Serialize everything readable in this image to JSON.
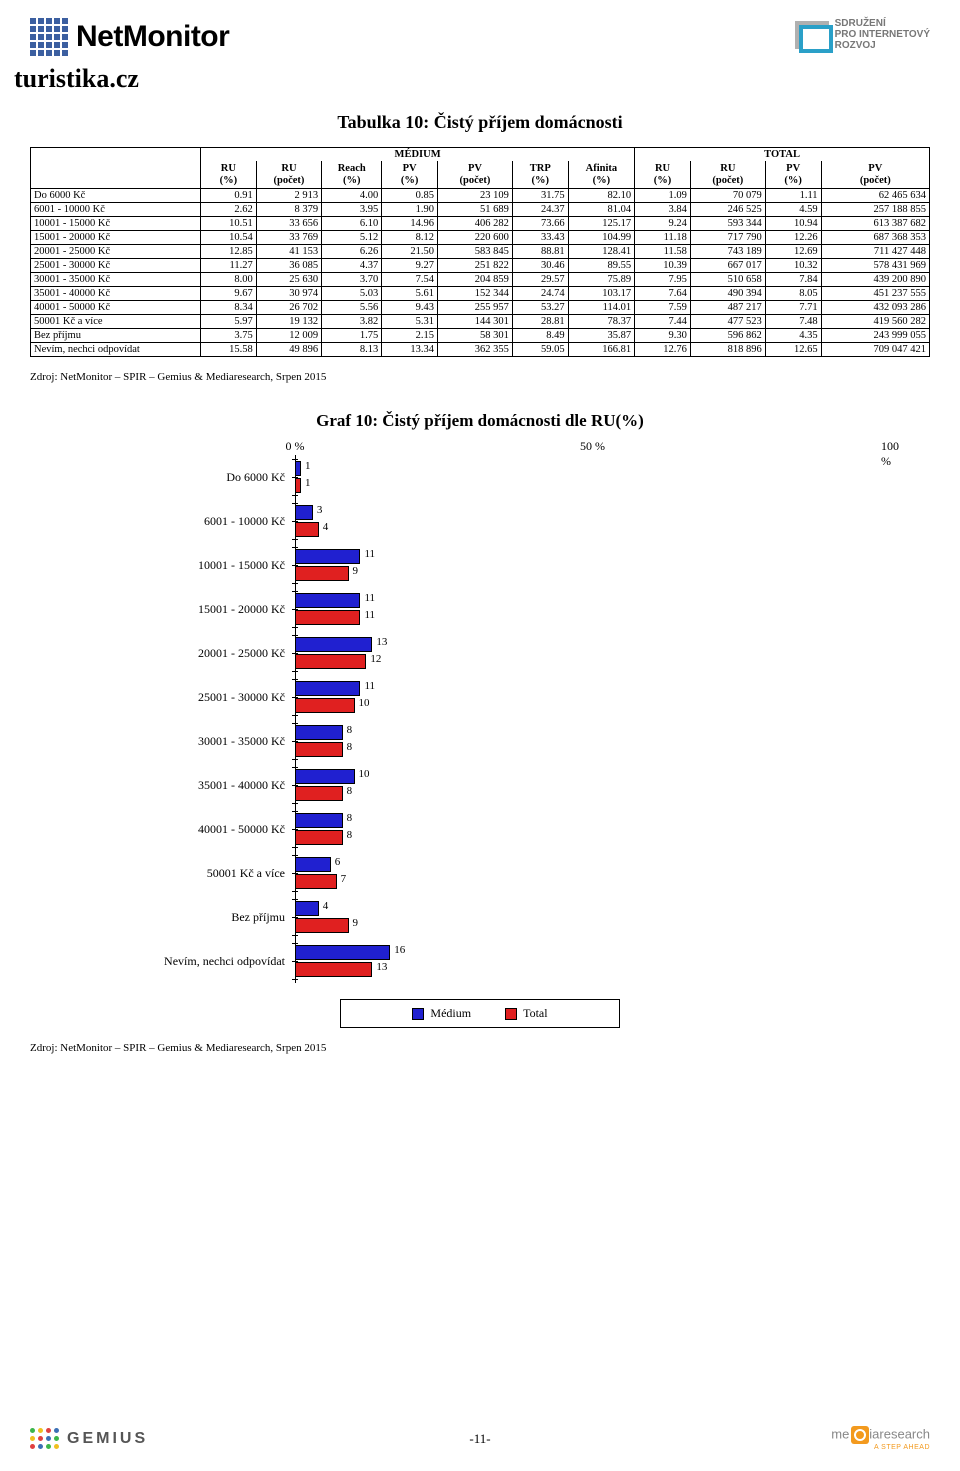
{
  "header": {
    "logo_text": "NetMonitor",
    "spir_line1": "SDRUŽENÍ",
    "spir_line2": "PRO INTERNETOVÝ",
    "spir_line3": "ROZVOJ"
  },
  "site_title": "turistika.cz",
  "table_title": "Tabulka 10: Čistý příjem domácnosti",
  "group_headers": {
    "medium": "MÉDIUM",
    "total": "TOTAL"
  },
  "columns": [
    "RU (%)",
    "RU (počet)",
    "Reach (%)",
    "PV (%)",
    "PV (počet)",
    "TRP (%)",
    "Afinita (%)",
    "RU (%)",
    "RU (počet)",
    "PV (%)",
    "PV (počet)"
  ],
  "rows": [
    {
      "label": "Do 6000 Kč",
      "v": [
        "0.91",
        "2 913",
        "4.00",
        "0.85",
        "23 109",
        "31.75",
        "82.10",
        "1.09",
        "70 079",
        "1.11",
        "62 465 634"
      ]
    },
    {
      "label": "6001 - 10000 Kč",
      "v": [
        "2.62",
        "8 379",
        "3.95",
        "1.90",
        "51 689",
        "24.37",
        "81.04",
        "3.84",
        "246 525",
        "4.59",
        "257 188 855"
      ]
    },
    {
      "label": "10001 - 15000 Kč",
      "v": [
        "10.51",
        "33 656",
        "6.10",
        "14.96",
        "406 282",
        "73.66",
        "125.17",
        "9.24",
        "593 344",
        "10.94",
        "613 387 682"
      ]
    },
    {
      "label": "15001 - 20000 Kč",
      "v": [
        "10.54",
        "33 769",
        "5.12",
        "8.12",
        "220 600",
        "33.43",
        "104.99",
        "11.18",
        "717 790",
        "12.26",
        "687 368 353"
      ]
    },
    {
      "label": "20001 - 25000 Kč",
      "v": [
        "12.85",
        "41 153",
        "6.26",
        "21.50",
        "583 845",
        "88.81",
        "128.41",
        "11.58",
        "743 189",
        "12.69",
        "711 427 448"
      ]
    },
    {
      "label": "25001 - 30000 Kč",
      "v": [
        "11.27",
        "36 085",
        "4.37",
        "9.27",
        "251 822",
        "30.46",
        "89.55",
        "10.39",
        "667 017",
        "10.32",
        "578 431 969"
      ]
    },
    {
      "label": "30001 - 35000 Kč",
      "v": [
        "8.00",
        "25 630",
        "3.70",
        "7.54",
        "204 859",
        "29.57",
        "75.89",
        "7.95",
        "510 658",
        "7.84",
        "439 200 890"
      ]
    },
    {
      "label": "35001 - 40000 Kč",
      "v": [
        "9.67",
        "30 974",
        "5.03",
        "5.61",
        "152 344",
        "24.74",
        "103.17",
        "7.64",
        "490 394",
        "8.05",
        "451 237 555"
      ]
    },
    {
      "label": "40001 - 50000 Kč",
      "v": [
        "8.34",
        "26 702",
        "5.56",
        "9.43",
        "255 957",
        "53.27",
        "114.01",
        "7.59",
        "487 217",
        "7.71",
        "432 093 286"
      ]
    },
    {
      "label": "50001 Kč a více",
      "v": [
        "5.97",
        "19 132",
        "3.82",
        "5.31",
        "144 301",
        "28.81",
        "78.37",
        "7.44",
        "477 523",
        "7.48",
        "419 560 282"
      ]
    },
    {
      "label": "Bez příjmu",
      "v": [
        "3.75",
        "12 009",
        "1.75",
        "2.15",
        "58 301",
        "8.49",
        "35.87",
        "9.30",
        "596 862",
        "4.35",
        "243 999 055"
      ]
    },
    {
      "label": "Nevím, nechci odpovídat",
      "v": [
        "15.58",
        "49 896",
        "8.13",
        "13.34",
        "362 355",
        "59.05",
        "166.81",
        "12.76",
        "818 896",
        "12.65",
        "709 047 421"
      ]
    }
  ],
  "source_text": "Zdroj: NetMonitor – SPIR – Gemius & Mediaresearch, Srpen 2015",
  "chart_title": "Graf 10: Čistý příjem domácnosti dle RU(%)",
  "chart": {
    "axis": {
      "min": 0,
      "max": 100,
      "ticks": [
        0,
        50,
        100
      ],
      "tick_labels": [
        "0 %",
        "50 %",
        "100 %"
      ]
    },
    "bar_colors": {
      "medium": "#2020d0",
      "total": "#e02020",
      "border": "#000000"
    },
    "label_fontsize": 12,
    "value_fontsize": 11,
    "categories": [
      {
        "label": "Do 6000 Kč",
        "medium": 1,
        "total": 1
      },
      {
        "label": "6001 - 10000 Kč",
        "medium": 3,
        "total": 4
      },
      {
        "label": "10001 - 15000 Kč",
        "medium": 11,
        "total": 9
      },
      {
        "label": "15001 - 20000 Kč",
        "medium": 11,
        "total": 11
      },
      {
        "label": "20001 - 25000 Kč",
        "medium": 13,
        "total": 12
      },
      {
        "label": "25001 - 30000 Kč",
        "medium": 11,
        "total": 10
      },
      {
        "label": "30001 - 35000 Kč",
        "medium": 8,
        "total": 8
      },
      {
        "label": "35001 - 40000 Kč",
        "medium": 10,
        "total": 8
      },
      {
        "label": "40001 - 50000 Kč",
        "medium": 8,
        "total": 8
      },
      {
        "label": "50001 Kč a více",
        "medium": 6,
        "total": 7
      },
      {
        "label": "Bez příjmu",
        "medium": 4,
        "total": 9
      },
      {
        "label": "Nevím, nechci odpovídat",
        "medium": 16,
        "total": 13
      }
    ],
    "legend": {
      "medium": "Médium",
      "total": "Total"
    }
  },
  "footer": {
    "gemius": "GEMIUS",
    "page": "-11-",
    "mediaresearch": "mediaresearch",
    "mediaresearch_sub": "A STEP AHEAD"
  }
}
